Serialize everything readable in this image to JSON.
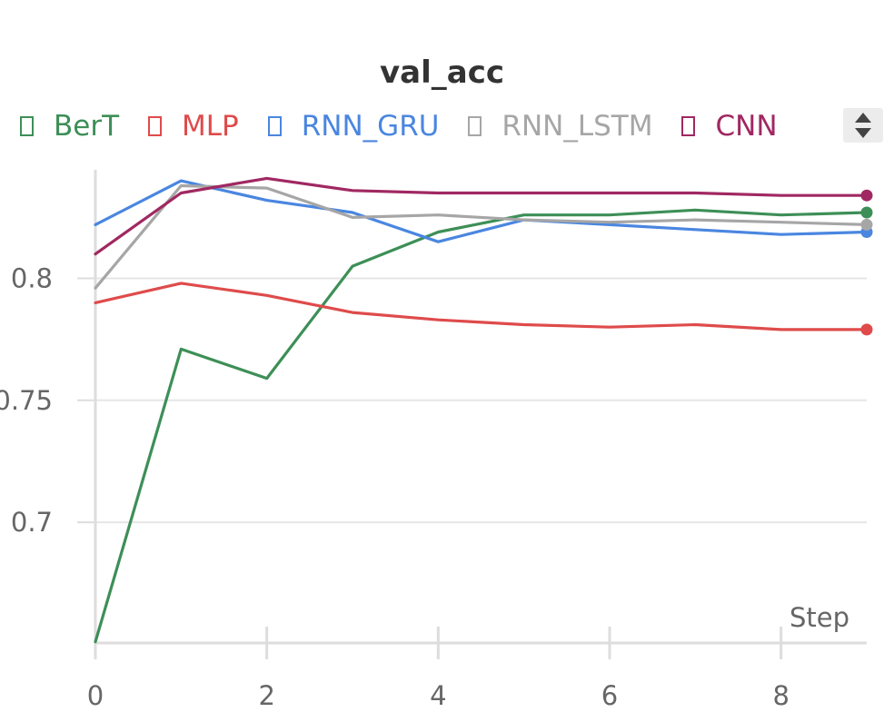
{
  "panel": {
    "title": "val_acc",
    "legend_scroll_icon": "sort-arrows-icon",
    "x_axis_label": "Step"
  },
  "chart_data": {
    "type": "line",
    "title": "val_acc",
    "xlabel": "Step",
    "ylabel": "",
    "x": [
      0,
      1,
      2,
      3,
      4,
      5,
      6,
      7,
      8,
      9
    ],
    "xlim": [
      0,
      9
    ],
    "ylim": [
      0.6505,
      0.8445
    ],
    "x_ticks": [
      0,
      2,
      4,
      6,
      8
    ],
    "y_ticks": [
      0.7,
      0.75,
      0.8
    ],
    "y_tick_labels": [
      "0.7",
      "0.75",
      "0.8"
    ],
    "grid": true,
    "legend_position": "top",
    "series": [
      {
        "name": "BerT",
        "color": "#3d8f57",
        "values": [
          0.651,
          0.771,
          0.759,
          0.805,
          0.819,
          0.826,
          0.826,
          0.828,
          0.826,
          0.827
        ]
      },
      {
        "name": "MLP",
        "color": "#df4b4b",
        "values": [
          0.79,
          0.798,
          0.793,
          0.786,
          0.783,
          0.781,
          0.78,
          0.781,
          0.779,
          0.779
        ]
      },
      {
        "name": "RNN_GRU",
        "color": "#4a86e0",
        "values": [
          0.822,
          0.84,
          0.832,
          0.827,
          0.815,
          0.824,
          0.822,
          0.82,
          0.818,
          0.819
        ]
      },
      {
        "name": "RNN_LSTM",
        "color": "#a6a6a6",
        "values": [
          0.796,
          0.838,
          0.837,
          0.825,
          0.826,
          0.824,
          0.823,
          0.824,
          0.823,
          0.822
        ]
      },
      {
        "name": "CNN",
        "color": "#a02862",
        "values": [
          0.81,
          0.835,
          0.841,
          0.836,
          0.835,
          0.835,
          0.835,
          0.835,
          0.834,
          0.834
        ]
      }
    ]
  }
}
